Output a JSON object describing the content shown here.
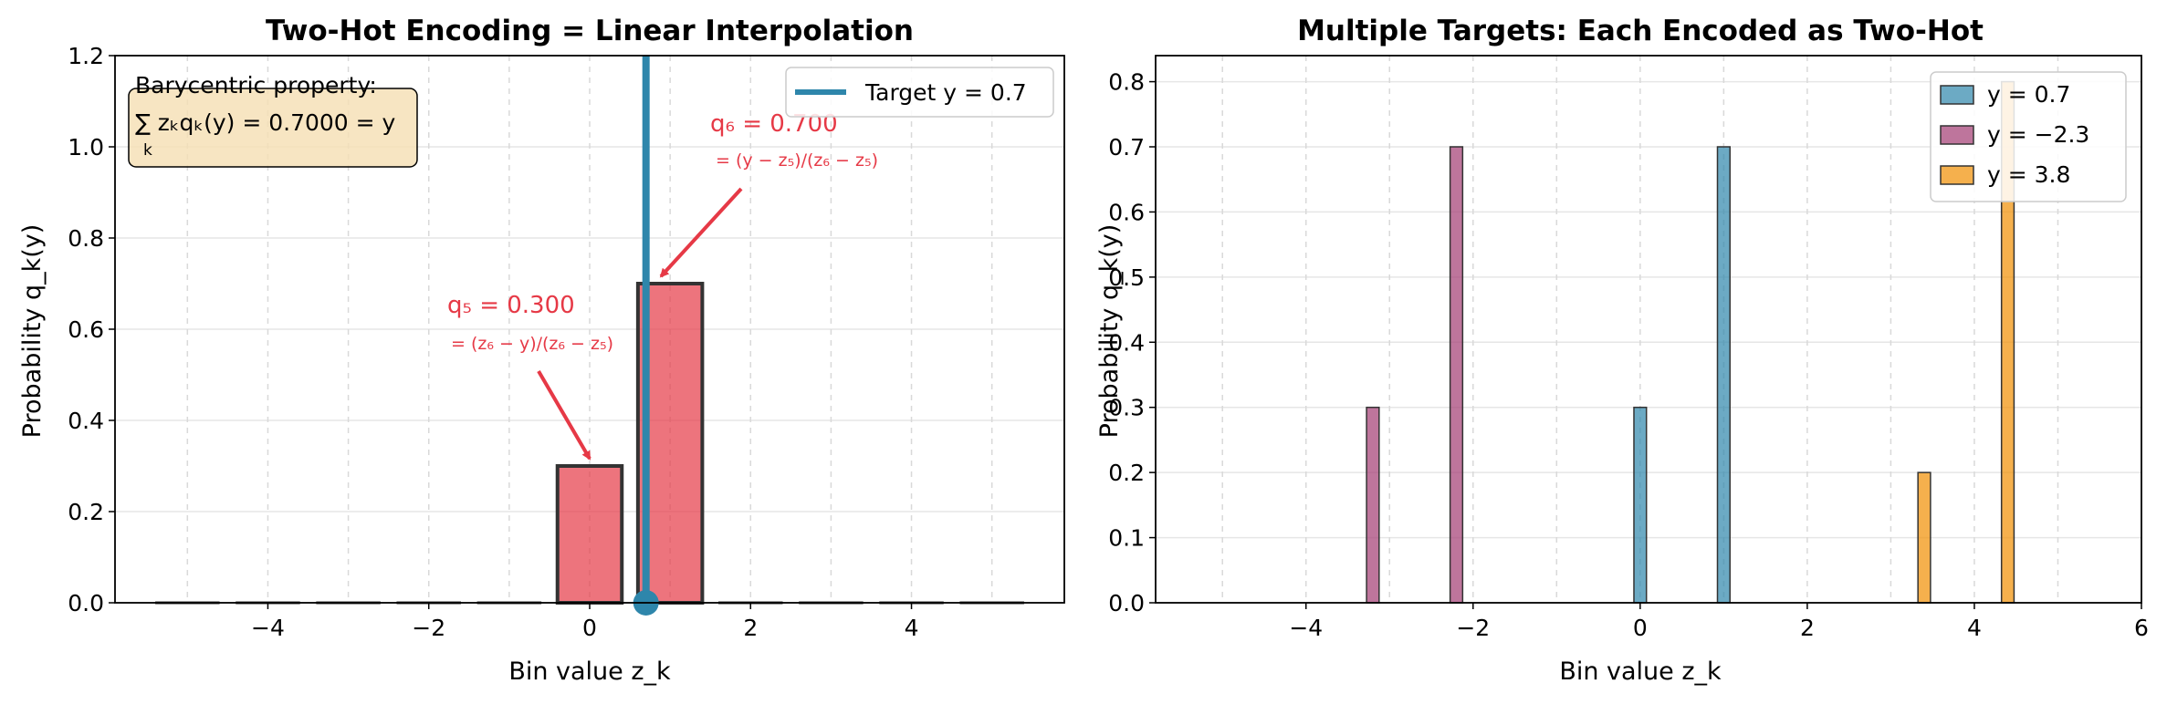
{
  "chart_data": [
    {
      "type": "bar",
      "title": "Two-Hot Encoding = Linear Interpolation",
      "xlabel": "Bin value z_k",
      "ylabel": "Probability q_k(y)",
      "xlim": [
        -5.9,
        5.9
      ],
      "ylim": [
        0,
        1.2
      ],
      "xticks": [
        -4,
        -2,
        0,
        2,
        4
      ],
      "xtick_labels": [
        "−4",
        "−2",
        "0",
        "2",
        "4"
      ],
      "yticks": [
        0.0,
        0.2,
        0.4,
        0.6,
        0.8,
        1.0,
        1.2
      ],
      "ytick_labels": [
        "0.0",
        "0.2",
        "0.4",
        "0.6",
        "0.8",
        "1.0",
        "1.2"
      ],
      "grid": true,
      "legend_position": "top-right",
      "bins": [
        -5,
        -4,
        -3,
        -2,
        -1,
        0,
        1,
        2,
        3,
        4,
        5
      ],
      "values": [
        0,
        0,
        0,
        0,
        0,
        0.3,
        0.7,
        0,
        0,
        0,
        0
      ],
      "bar_color": "#e63946",
      "target": {
        "value": 0.7,
        "legend": "Target y = 0.7",
        "color": "#2e86ab"
      },
      "info_box": {
        "line1": "Barycentric property:",
        "line2": "∑ zₖqₖ(y) = 0.7000 = y",
        "line2_sub": "k"
      },
      "annotations": [
        {
          "text": "q₅ = 0.300",
          "formula": "= (z₆ − y)/(z₆ − z₅)",
          "x": 0,
          "y": 0.3
        },
        {
          "text": "q₆ = 0.700",
          "formula": "= (y − z₅)/(z₆ − z₅)",
          "x": 1,
          "y": 0.7
        }
      ]
    },
    {
      "type": "bar",
      "title": "Multiple Targets: Each Encoded as Two-Hot",
      "xlabel": "Bin value z_k",
      "ylabel": "Probability q_k(y)",
      "xlim": [
        -5.8,
        6.0
      ],
      "ylim": [
        0,
        0.84
      ],
      "xticks": [
        -4,
        -2,
        0,
        2,
        4,
        6
      ],
      "xtick_labels": [
        "−4",
        "−2",
        "0",
        "2",
        "4",
        "6"
      ],
      "yticks": [
        0.0,
        0.1,
        0.2,
        0.3,
        0.4,
        0.5,
        0.6,
        0.7,
        0.8
      ],
      "ytick_labels": [
        "0.0",
        "0.1",
        "0.2",
        "0.3",
        "0.4",
        "0.5",
        "0.6",
        "0.7",
        "0.8"
      ],
      "grid": true,
      "legend_position": "top-right",
      "bins": [
        -5,
        -4,
        -3,
        -2,
        -1,
        0,
        1,
        2,
        3,
        4,
        5
      ],
      "series": [
        {
          "name": "y = 0.7",
          "color": "#2e86ab",
          "values": [
            0,
            0,
            0,
            0,
            0,
            0.3,
            0.7,
            0,
            0,
            0,
            0
          ]
        },
        {
          "name": "y = −2.3",
          "color": "#a23b72",
          "values": [
            0,
            0,
            0.3,
            0.7,
            0,
            0,
            0,
            0,
            0,
            0,
            0
          ]
        },
        {
          "name": "y = 3.8",
          "color": "#f18f01",
          "values": [
            0,
            0,
            0,
            0,
            0,
            0,
            0,
            0,
            0.2,
            0.8,
            0
          ]
        }
      ]
    }
  ]
}
